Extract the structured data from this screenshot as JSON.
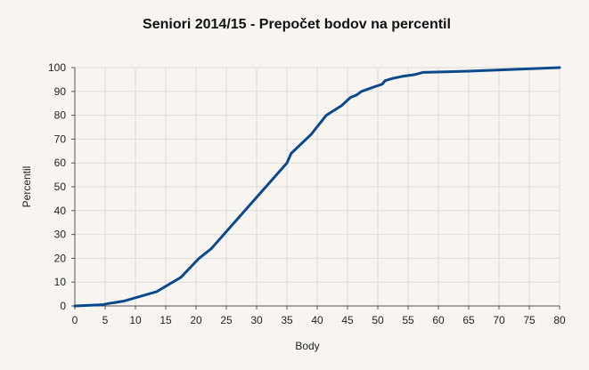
{
  "chart_data": {
    "type": "line",
    "title": "Seniori 2014/15 - Prepočet bodov na percentil",
    "xlabel": "Body",
    "ylabel": "Percentil",
    "xlim": [
      0,
      80
    ],
    "ylim": [
      0,
      100
    ],
    "x_ticks": [
      0,
      5,
      10,
      15,
      20,
      25,
      30,
      35,
      40,
      45,
      50,
      55,
      60,
      65,
      70,
      75,
      80
    ],
    "y_ticks": [
      0,
      10,
      20,
      30,
      40,
      50,
      60,
      70,
      80,
      90,
      100
    ],
    "grid": true,
    "legend": "none",
    "series_color": "#0a4a8c",
    "series": [
      {
        "x": [
          0,
          4.5,
          5.5,
          8,
          13.5,
          17.5,
          20.5,
          22.5,
          35,
          35.7,
          39,
          41.5,
          44,
          45.5,
          46.5,
          47.3,
          49.5,
          50.7,
          51.2,
          52.5,
          54,
          56,
          57.5,
          65,
          80
        ],
        "y": [
          0,
          0.5,
          1,
          2,
          6,
          12,
          20,
          24,
          60,
          64,
          72,
          80,
          84,
          87.5,
          88.5,
          90,
          92,
          93,
          94.5,
          95.5,
          96.3,
          97,
          98,
          98.5,
          100
        ]
      }
    ]
  }
}
